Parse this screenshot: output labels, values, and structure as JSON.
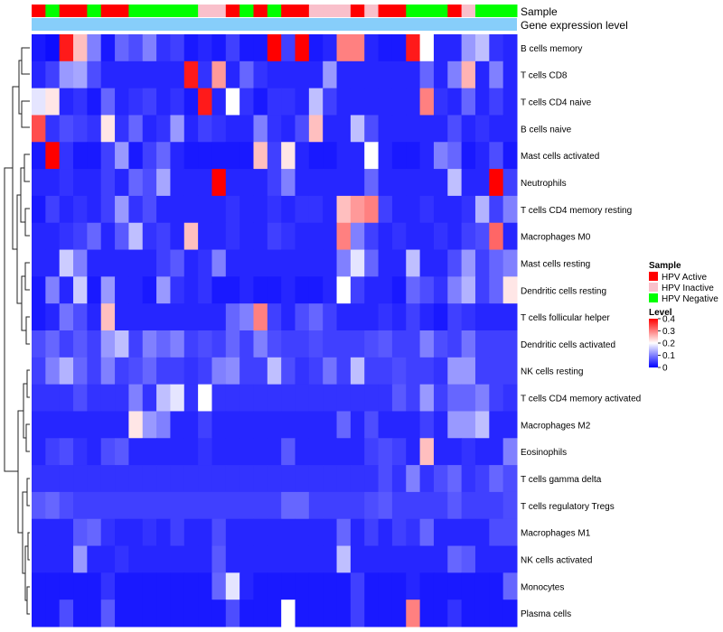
{
  "chart_data": {
    "type": "heatmap",
    "annotations": {
      "sample_label": "Sample",
      "expression_label": "Gene expression level"
    },
    "rows": [
      "B cells memory",
      "T cells CD8",
      "T cells CD4 naive",
      "B cells naive",
      "Mast cells activated",
      "Neutrophils",
      "T cells CD4 memory resting",
      "Macrophages M0",
      "Mast cells resting",
      "Dendritic cells resting",
      "T cells follicular helper",
      "Dendritic cells activated",
      "NK cells resting",
      "T cells CD4 memory activated",
      "Macrophages M2",
      "Eosinophils",
      "T cells gamma delta",
      "T cells regulatory  Tregs",
      "Macrophages M1",
      "NK cells activated",
      "Monocytes",
      "Plasma cells"
    ],
    "column_groups": [
      "A",
      "N",
      "A",
      "A",
      "N",
      "A",
      "A",
      "N",
      "N",
      "N",
      "N",
      "N",
      "I",
      "I",
      "A",
      "N",
      "A",
      "N",
      "A",
      "A",
      "I",
      "I",
      "I",
      "A",
      "I",
      "A",
      "A",
      "N",
      "N",
      "N",
      "A",
      "I",
      "N",
      "N",
      "N"
    ],
    "values": [
      [
        0.02,
        0.01,
        0.38,
        0.25,
        0.1,
        0.02,
        0.08,
        0.06,
        0.1,
        0.04,
        0.05,
        0.02,
        0.03,
        0.02,
        0.05,
        0.02,
        0.02,
        0.4,
        0.05,
        0.4,
        0.02,
        0.03,
        0.3,
        0.3,
        0.03,
        0.02,
        0.02,
        0.38,
        0.2,
        0.03,
        0.03,
        0.12,
        0.15,
        0.04,
        0.03
      ],
      [
        0.03,
        0.05,
        0.12,
        0.13,
        0.06,
        0.03,
        0.03,
        0.03,
        0.03,
        0.03,
        0.03,
        0.38,
        0.04,
        0.28,
        0.03,
        0.08,
        0.04,
        0.03,
        0.03,
        0.03,
        0.03,
        0.12,
        0.03,
        0.03,
        0.03,
        0.03,
        0.03,
        0.03,
        0.08,
        0.03,
        0.1,
        0.26,
        0.03,
        0.1,
        0.03
      ],
      [
        0.18,
        0.22,
        0.03,
        0.04,
        0.02,
        0.08,
        0.03,
        0.04,
        0.05,
        0.03,
        0.04,
        0.02,
        0.38,
        0.03,
        0.2,
        0.04,
        0.02,
        0.04,
        0.04,
        0.03,
        0.15,
        0.05,
        0.03,
        0.03,
        0.03,
        0.03,
        0.03,
        0.03,
        0.3,
        0.04,
        0.03,
        0.08,
        0.03,
        0.05,
        0.03
      ],
      [
        0.34,
        0.04,
        0.06,
        0.05,
        0.04,
        0.22,
        0.04,
        0.08,
        0.03,
        0.04,
        0.12,
        0.03,
        0.05,
        0.04,
        0.03,
        0.03,
        0.1,
        0.04,
        0.03,
        0.06,
        0.25,
        0.03,
        0.03,
        0.15,
        0.06,
        0.03,
        0.03,
        0.03,
        0.03,
        0.03,
        0.06,
        0.03,
        0.04,
        0.03,
        0.03
      ],
      [
        0.02,
        0.4,
        0.04,
        0.02,
        0.02,
        0.05,
        0.12,
        0.02,
        0.05,
        0.08,
        0.03,
        0.02,
        0.02,
        0.02,
        0.02,
        0.02,
        0.25,
        0.05,
        0.22,
        0.03,
        0.02,
        0.02,
        0.03,
        0.03,
        0.2,
        0.03,
        0.02,
        0.02,
        0.03,
        0.1,
        0.08,
        0.02,
        0.03,
        0.06,
        0.02
      ],
      [
        0.03,
        0.03,
        0.04,
        0.03,
        0.03,
        0.05,
        0.03,
        0.08,
        0.06,
        0.13,
        0.03,
        0.03,
        0.03,
        0.4,
        0.03,
        0.03,
        0.03,
        0.05,
        0.1,
        0.03,
        0.03,
        0.03,
        0.03,
        0.03,
        0.08,
        0.03,
        0.03,
        0.03,
        0.03,
        0.03,
        0.15,
        0.03,
        0.03,
        0.4,
        0.05
      ],
      [
        0.02,
        0.05,
        0.03,
        0.04,
        0.03,
        0.05,
        0.12,
        0.04,
        0.06,
        0.03,
        0.03,
        0.03,
        0.03,
        0.03,
        0.04,
        0.03,
        0.03,
        0.04,
        0.03,
        0.04,
        0.04,
        0.03,
        0.25,
        0.28,
        0.3,
        0.05,
        0.03,
        0.03,
        0.04,
        0.03,
        0.03,
        0.04,
        0.14,
        0.05,
        0.1
      ],
      [
        0.03,
        0.03,
        0.04,
        0.05,
        0.08,
        0.03,
        0.07,
        0.15,
        0.04,
        0.05,
        0.03,
        0.25,
        0.03,
        0.03,
        0.04,
        0.03,
        0.03,
        0.05,
        0.04,
        0.03,
        0.03,
        0.03,
        0.3,
        0.1,
        0.05,
        0.03,
        0.04,
        0.03,
        0.03,
        0.04,
        0.03,
        0.05,
        0.06,
        0.32,
        0.03
      ],
      [
        0.03,
        0.03,
        0.16,
        0.1,
        0.03,
        0.03,
        0.03,
        0.03,
        0.03,
        0.05,
        0.07,
        0.03,
        0.04,
        0.1,
        0.03,
        0.03,
        0.03,
        0.03,
        0.03,
        0.03,
        0.03,
        0.03,
        0.1,
        0.18,
        0.08,
        0.03,
        0.03,
        0.15,
        0.03,
        0.03,
        0.06,
        0.12,
        0.05,
        0.08,
        0.1
      ],
      [
        0.02,
        0.1,
        0.03,
        0.16,
        0.02,
        0.12,
        0.03,
        0.03,
        0.02,
        0.12,
        0.04,
        0.03,
        0.04,
        0.02,
        0.02,
        0.03,
        0.02,
        0.02,
        0.03,
        0.02,
        0.02,
        0.03,
        0.2,
        0.05,
        0.03,
        0.03,
        0.02,
        0.08,
        0.06,
        0.04,
        0.1,
        0.14,
        0.05,
        0.08,
        0.22
      ],
      [
        0.02,
        0.03,
        0.09,
        0.06,
        0.03,
        0.25,
        0.03,
        0.03,
        0.03,
        0.03,
        0.03,
        0.03,
        0.03,
        0.03,
        0.08,
        0.1,
        0.3,
        0.05,
        0.03,
        0.06,
        0.08,
        0.05,
        0.03,
        0.03,
        0.03,
        0.04,
        0.03,
        0.05,
        0.03,
        0.02,
        0.05,
        0.04,
        0.03,
        0.03,
        0.03
      ],
      [
        0.06,
        0.08,
        0.05,
        0.07,
        0.05,
        0.12,
        0.15,
        0.05,
        0.1,
        0.08,
        0.1,
        0.05,
        0.06,
        0.05,
        0.08,
        0.05,
        0.1,
        0.06,
        0.05,
        0.05,
        0.06,
        0.05,
        0.05,
        0.05,
        0.06,
        0.07,
        0.05,
        0.05,
        0.1,
        0.06,
        0.05,
        0.09,
        0.05,
        0.05,
        0.05
      ],
      [
        0.05,
        0.1,
        0.14,
        0.08,
        0.05,
        0.1,
        0.05,
        0.06,
        0.08,
        0.05,
        0.05,
        0.04,
        0.05,
        0.1,
        0.11,
        0.05,
        0.05,
        0.15,
        0.06,
        0.04,
        0.05,
        0.09,
        0.05,
        0.15,
        0.05,
        0.05,
        0.06,
        0.05,
        0.05,
        0.04,
        0.12,
        0.12,
        0.05,
        0.05,
        0.05
      ],
      [
        0.04,
        0.04,
        0.04,
        0.06,
        0.04,
        0.04,
        0.04,
        0.1,
        0.04,
        0.15,
        0.18,
        0.04,
        0.2,
        0.04,
        0.04,
        0.04,
        0.04,
        0.04,
        0.04,
        0.04,
        0.04,
        0.04,
        0.04,
        0.04,
        0.04,
        0.04,
        0.07,
        0.05,
        0.12,
        0.05,
        0.08,
        0.08,
        0.1,
        0.05,
        0.04
      ],
      [
        0.03,
        0.03,
        0.03,
        0.03,
        0.03,
        0.03,
        0.03,
        0.22,
        0.12,
        0.1,
        0.03,
        0.03,
        0.05,
        0.03,
        0.03,
        0.03,
        0.03,
        0.03,
        0.03,
        0.03,
        0.03,
        0.03,
        0.08,
        0.03,
        0.06,
        0.03,
        0.03,
        0.03,
        0.05,
        0.03,
        0.12,
        0.12,
        0.15,
        0.03,
        0.03
      ],
      [
        0.03,
        0.05,
        0.06,
        0.04,
        0.03,
        0.06,
        0.07,
        0.03,
        0.03,
        0.03,
        0.03,
        0.03,
        0.04,
        0.03,
        0.03,
        0.03,
        0.03,
        0.03,
        0.07,
        0.03,
        0.03,
        0.03,
        0.03,
        0.03,
        0.05,
        0.06,
        0.05,
        0.03,
        0.25,
        0.03,
        0.03,
        0.04,
        0.03,
        0.03,
        0.1
      ],
      [
        0.04,
        0.04,
        0.04,
        0.04,
        0.04,
        0.04,
        0.04,
        0.04,
        0.04,
        0.04,
        0.04,
        0.04,
        0.04,
        0.04,
        0.04,
        0.04,
        0.04,
        0.04,
        0.04,
        0.04,
        0.04,
        0.04,
        0.04,
        0.04,
        0.04,
        0.06,
        0.04,
        0.1,
        0.04,
        0.06,
        0.08,
        0.04,
        0.05,
        0.08,
        0.06
      ],
      [
        0.07,
        0.08,
        0.06,
        0.05,
        0.05,
        0.05,
        0.05,
        0.05,
        0.05,
        0.05,
        0.05,
        0.05,
        0.05,
        0.05,
        0.05,
        0.05,
        0.05,
        0.05,
        0.08,
        0.08,
        0.05,
        0.05,
        0.05,
        0.05,
        0.06,
        0.07,
        0.05,
        0.05,
        0.05,
        0.05,
        0.07,
        0.05,
        0.05,
        0.05,
        0.06
      ],
      [
        0.03,
        0.03,
        0.03,
        0.07,
        0.08,
        0.04,
        0.03,
        0.03,
        0.04,
        0.03,
        0.05,
        0.03,
        0.03,
        0.06,
        0.03,
        0.03,
        0.03,
        0.03,
        0.03,
        0.03,
        0.03,
        0.03,
        0.08,
        0.03,
        0.05,
        0.03,
        0.05,
        0.04,
        0.08,
        0.03,
        0.03,
        0.03,
        0.03,
        0.06,
        0.06
      ],
      [
        0.03,
        0.03,
        0.03,
        0.12,
        0.03,
        0.03,
        0.04,
        0.03,
        0.03,
        0.03,
        0.03,
        0.03,
        0.03,
        0.07,
        0.03,
        0.03,
        0.03,
        0.03,
        0.03,
        0.03,
        0.03,
        0.03,
        0.15,
        0.03,
        0.03,
        0.03,
        0.03,
        0.03,
        0.03,
        0.03,
        0.08,
        0.07,
        0.03,
        0.03,
        0.03
      ],
      [
        0.02,
        0.02,
        0.02,
        0.02,
        0.02,
        0.04,
        0.02,
        0.02,
        0.02,
        0.02,
        0.02,
        0.02,
        0.02,
        0.08,
        0.18,
        0.03,
        0.02,
        0.02,
        0.02,
        0.02,
        0.02,
        0.02,
        0.02,
        0.05,
        0.02,
        0.02,
        0.02,
        0.03,
        0.02,
        0.02,
        0.02,
        0.02,
        0.02,
        0.02,
        0.08
      ],
      [
        0.02,
        0.02,
        0.06,
        0.02,
        0.02,
        0.07,
        0.02,
        0.02,
        0.02,
        0.02,
        0.02,
        0.02,
        0.02,
        0.02,
        0.06,
        0.02,
        0.02,
        0.02,
        0.2,
        0.02,
        0.02,
        0.02,
        0.02,
        0.05,
        0.02,
        0.02,
        0.02,
        0.3,
        0.02,
        0.02,
        0.04,
        0.02,
        0.02,
        0.02,
        0.02
      ]
    ],
    "color_scale": {
      "low": "#0000ff",
      "mid": "#ffffff",
      "high": "#ff0000",
      "domain": [
        0,
        0.2,
        0.4
      ]
    },
    "legend": {
      "sample": {
        "title": "Sample",
        "items": [
          {
            "key": "A",
            "label": "HPV Active",
            "color": "#ff0000"
          },
          {
            "key": "I",
            "label": "HPV Inactive",
            "color": "#f9c0cb"
          },
          {
            "key": "N",
            "label": "HPV Negative",
            "color": "#00ff00"
          }
        ]
      },
      "level": {
        "title": "Level",
        "ticks": [
          0.4,
          0.3,
          0.2,
          0.1,
          0
        ],
        "tick_labels": [
          "0.4",
          "0.3",
          "0.2",
          "0.1",
          "0"
        ],
        "range": [
          0,
          0.4
        ]
      }
    },
    "expression_bar_color": "#87cefa",
    "dendrogram": "present (row clustering, left side)"
  }
}
